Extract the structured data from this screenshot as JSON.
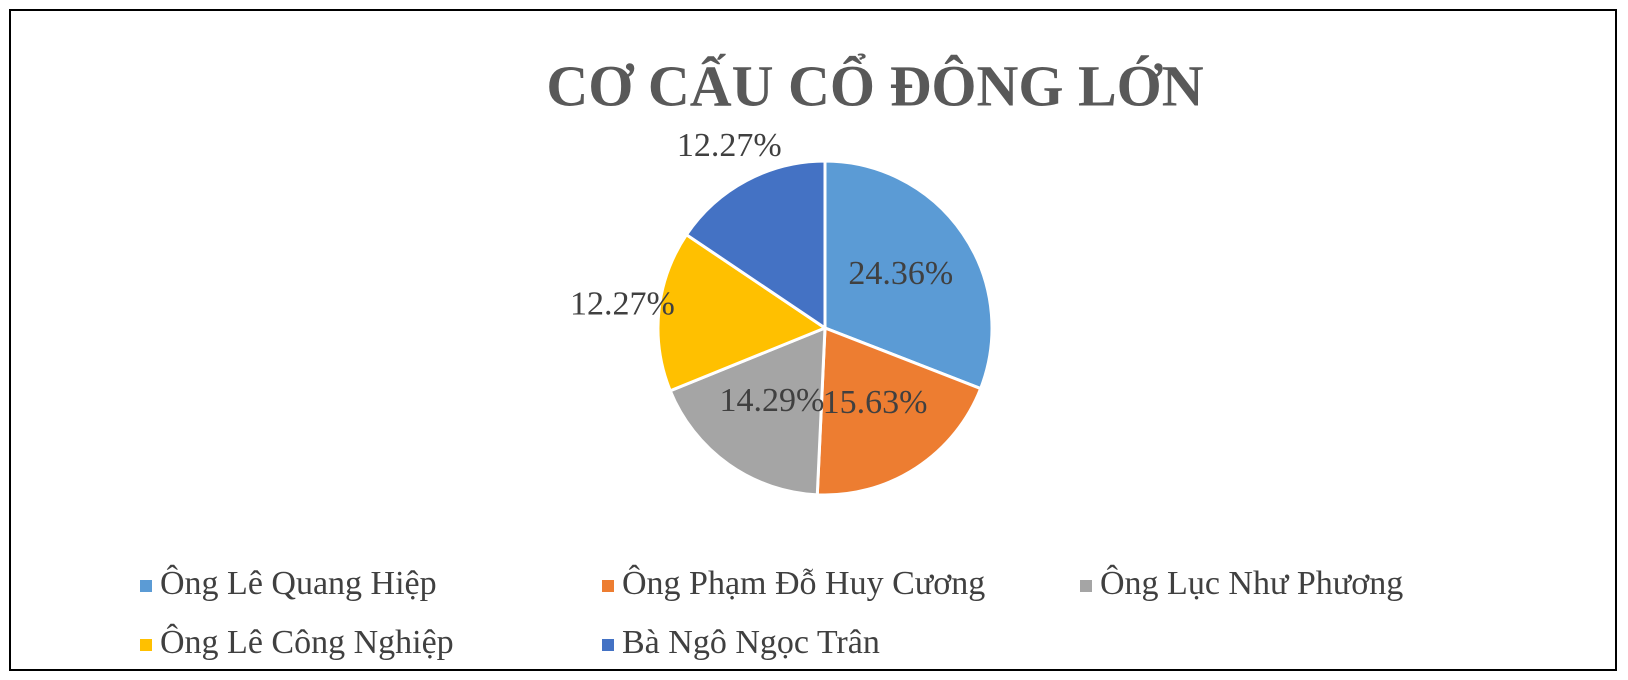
{
  "chart_data": {
    "type": "pie",
    "title": "CƠ CẤU CỔ ĐÔNG LỚN",
    "categories": [
      "Ông Lê Quang Hiệp",
      "Ông Phạm Đỗ Huy Cương",
      "Ông Lục Như Phương",
      "Ông Lê Công Nghiệp",
      "Bà Ngô Ngọc Trân"
    ],
    "values": [
      24.36,
      15.63,
      14.29,
      12.27,
      12.27
    ],
    "value_labels": [
      "24.36%",
      "15.63%",
      "14.29%",
      "12.27%",
      "12.27%"
    ],
    "colors": [
      "#5b9bd5",
      "#ed7d31",
      "#a5a5a5",
      "#ffc000",
      "#4472c4"
    ],
    "legend": "bottom"
  }
}
